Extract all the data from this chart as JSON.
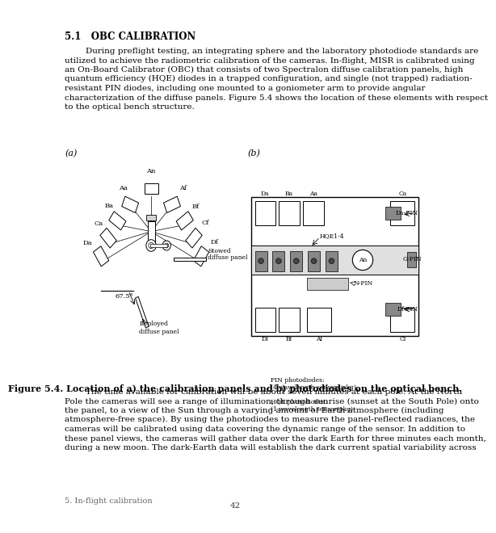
{
  "background_color": "#ffffff",
  "page_width": 4.95,
  "page_height": 6.4,
  "section_title": "5.1   OBC CALIBRATION",
  "body_lines": [
    "        During preflight testing, an integrating sphere and the laboratory photodiode standards are",
    "utilized to achieve the radiometric calibration of the cameras. In-flight, MISR is calibrated using",
    "an On-Board Calibrator (OBC) that consists of two Spectralon diffuse calibration panels, high",
    "quantum efficiency (HQE) diodes in a trapped configuration, and single (not trapped) radiation-",
    "resistant PIN diodes, including one mounted to a goniometer arm to provide angular",
    "characterization of the diffuse panels. Figure 5.4 shows the location of these elements with respect",
    "to the optical bench structure."
  ],
  "figure_caption": "Figure 5.4. Location of a) the calibration panels and b) photodiodes on the optical bench.",
  "body2_lines": [
    "        The time available for calibration will be about seven minutes at each pole. At the North",
    "Pole the cameras will see a range of illumination, through sunrise (sunset at the South Pole) onto",
    "the panel, to a view of the Sun through a varying amount of Earth atmosphere (including",
    "atmosphere-free space). By using the photodiodes to measure the panel-reflected radiances, the",
    "cameras will be calibrated using data covering the dynamic range of the sensor. In addition to",
    "these panel views, the cameras will gather data over the dark Earth for three minutes each month,",
    "during a new moon. The dark-Earth data will establish the dark current spatial variability across"
  ],
  "footer_left": "5. In-flight calibration",
  "footer_center": "42",
  "pin_gray": "#888888",
  "hqe_dark": "#444444",
  "pin_gray2": "#999999"
}
